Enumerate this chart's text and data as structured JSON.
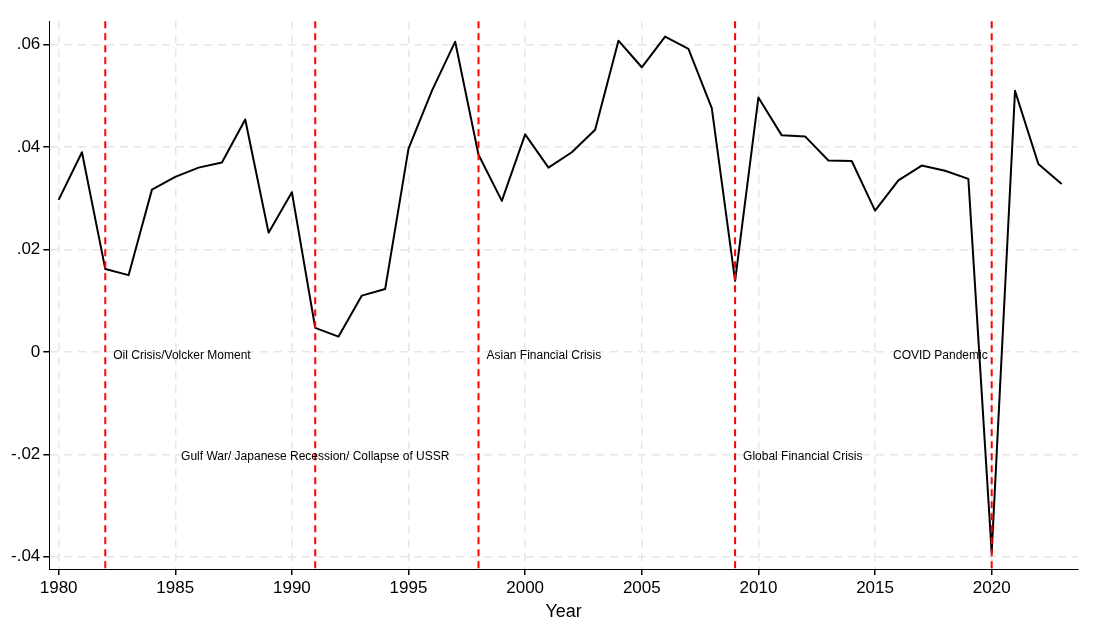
{
  "chart_data": {
    "type": "line",
    "xlabel": "Year",
    "x": [
      1980,
      1981,
      1982,
      1983,
      1984,
      1985,
      1986,
      1987,
      1988,
      1989,
      1990,
      1991,
      1992,
      1993,
      1994,
      1995,
      1996,
      1997,
      1998,
      1999,
      2000,
      2001,
      2002,
      2003,
      2004,
      2005,
      2006,
      2007,
      2008,
      2009,
      2010,
      2011,
      2012,
      2013,
      2014,
      2015,
      2016,
      2017,
      2018,
      2019,
      2020,
      2021,
      2022,
      2023
    ],
    "series": [
      {
        "color": "#000000",
        "values": [
          0.0297,
          0.039,
          0.0162,
          0.015,
          0.0317,
          0.0342,
          0.036,
          0.037,
          0.0454,
          0.0233,
          0.0312,
          0.0047,
          0.003,
          0.011,
          0.0123,
          0.0397,
          0.051,
          0.0606,
          0.0385,
          0.0295,
          0.0425,
          0.036,
          0.039,
          0.0434,
          0.0608,
          0.0556,
          0.0616,
          0.0592,
          0.0476,
          0.0139,
          0.0497,
          0.0423,
          0.0421,
          0.0374,
          0.0373,
          0.0276,
          0.0335,
          0.0364,
          0.0354,
          0.0338,
          -0.0392,
          0.051,
          0.0367,
          0.0328
        ]
      }
    ],
    "xlim": [
      1979.6,
      2023.7
    ],
    "xticks": [
      1980,
      1985,
      1990,
      1995,
      2000,
      2005,
      2010,
      2015,
      2020
    ],
    "ylim": [
      -0.0424,
      0.0646
    ],
    "yticks": [
      {
        "value": -0.04,
        "label": "-.04"
      },
      {
        "value": -0.02,
        "label": "-.02"
      },
      0,
      {
        "value": 0.02,
        "label": ".02"
      },
      {
        "value": 0.04,
        "label": ".04"
      },
      {
        "value": 0.06,
        "label": ".06"
      }
    ],
    "grid": true,
    "legend": false,
    "marker": "none",
    "line_style": "solid",
    "ref_lines": [
      {
        "axis": "x",
        "value": 1982,
        "label": "Oil Crisis/Volcker Moment",
        "color": "#ff0000",
        "line_style": "dashed"
      },
      {
        "axis": "x",
        "value": 1991,
        "label": "Gulf War/ Japanese Recession/ Collapse of USSR",
        "color": "#ff0000",
        "line_style": "dashed"
      },
      {
        "axis": "x",
        "value": 1998,
        "label": "Asian Financial Crisis",
        "color": "#ff0000",
        "line_style": "dashed"
      },
      {
        "axis": "x",
        "value": 2009,
        "label": "Global Financial Crisis",
        "color": "#ff0000",
        "line_style": "dashed"
      },
      {
        "axis": "x",
        "value": 2020,
        "label": "COVID Pandemic",
        "color": "#ff0000",
        "line_style": "dashed"
      }
    ]
  }
}
